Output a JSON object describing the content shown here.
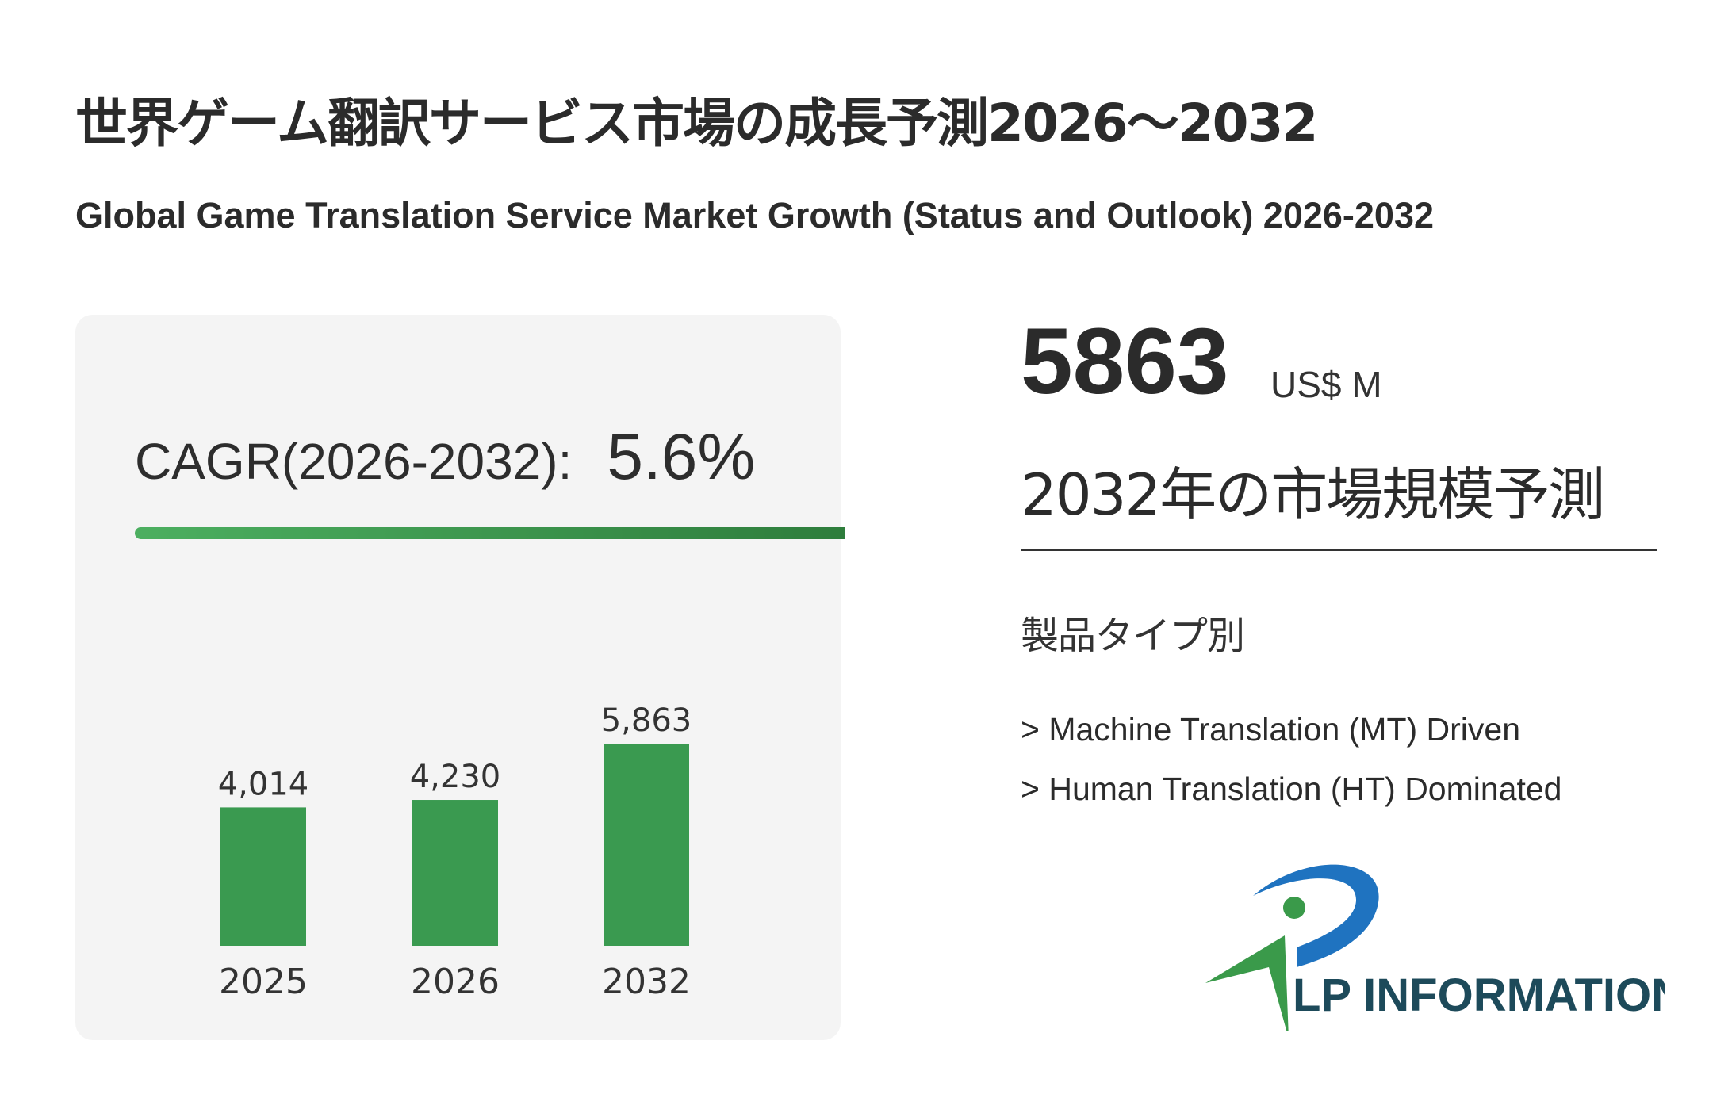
{
  "header": {
    "title_ja": "世界ゲーム翻訳サービス市場の成長予測2026～2032",
    "title_en": "Global Game Translation Service Market Growth (Status and Outlook) 2026-2032"
  },
  "cagr": {
    "label": "CAGR(2026-2032):",
    "value": "5.6%"
  },
  "summary": {
    "value": "5863",
    "unit": "US$ M",
    "label": "2032年の市場規模予測"
  },
  "segments": {
    "title": "製品タイプ別",
    "items": [
      "> Machine Translation (MT) Driven",
      "> Human Translation (HT) Dominated"
    ]
  },
  "logo": {
    "text": "LP INFORMATION"
  },
  "colors": {
    "bar": "#3a9a50",
    "logo_blue": "#1f73c0",
    "logo_green": "#3a9a4a",
    "logo_text": "#1d4a5a"
  },
  "chart_data": {
    "type": "bar",
    "title": "",
    "categories": [
      "2025",
      "2026",
      "2032"
    ],
    "values": [
      4014,
      4230,
      5863
    ],
    "value_labels": [
      "4,014",
      "4,230",
      "5,863"
    ],
    "xlabel": "",
    "ylabel": "US$ M",
    "ylim": [
      0,
      5863
    ],
    "grid": false
  }
}
